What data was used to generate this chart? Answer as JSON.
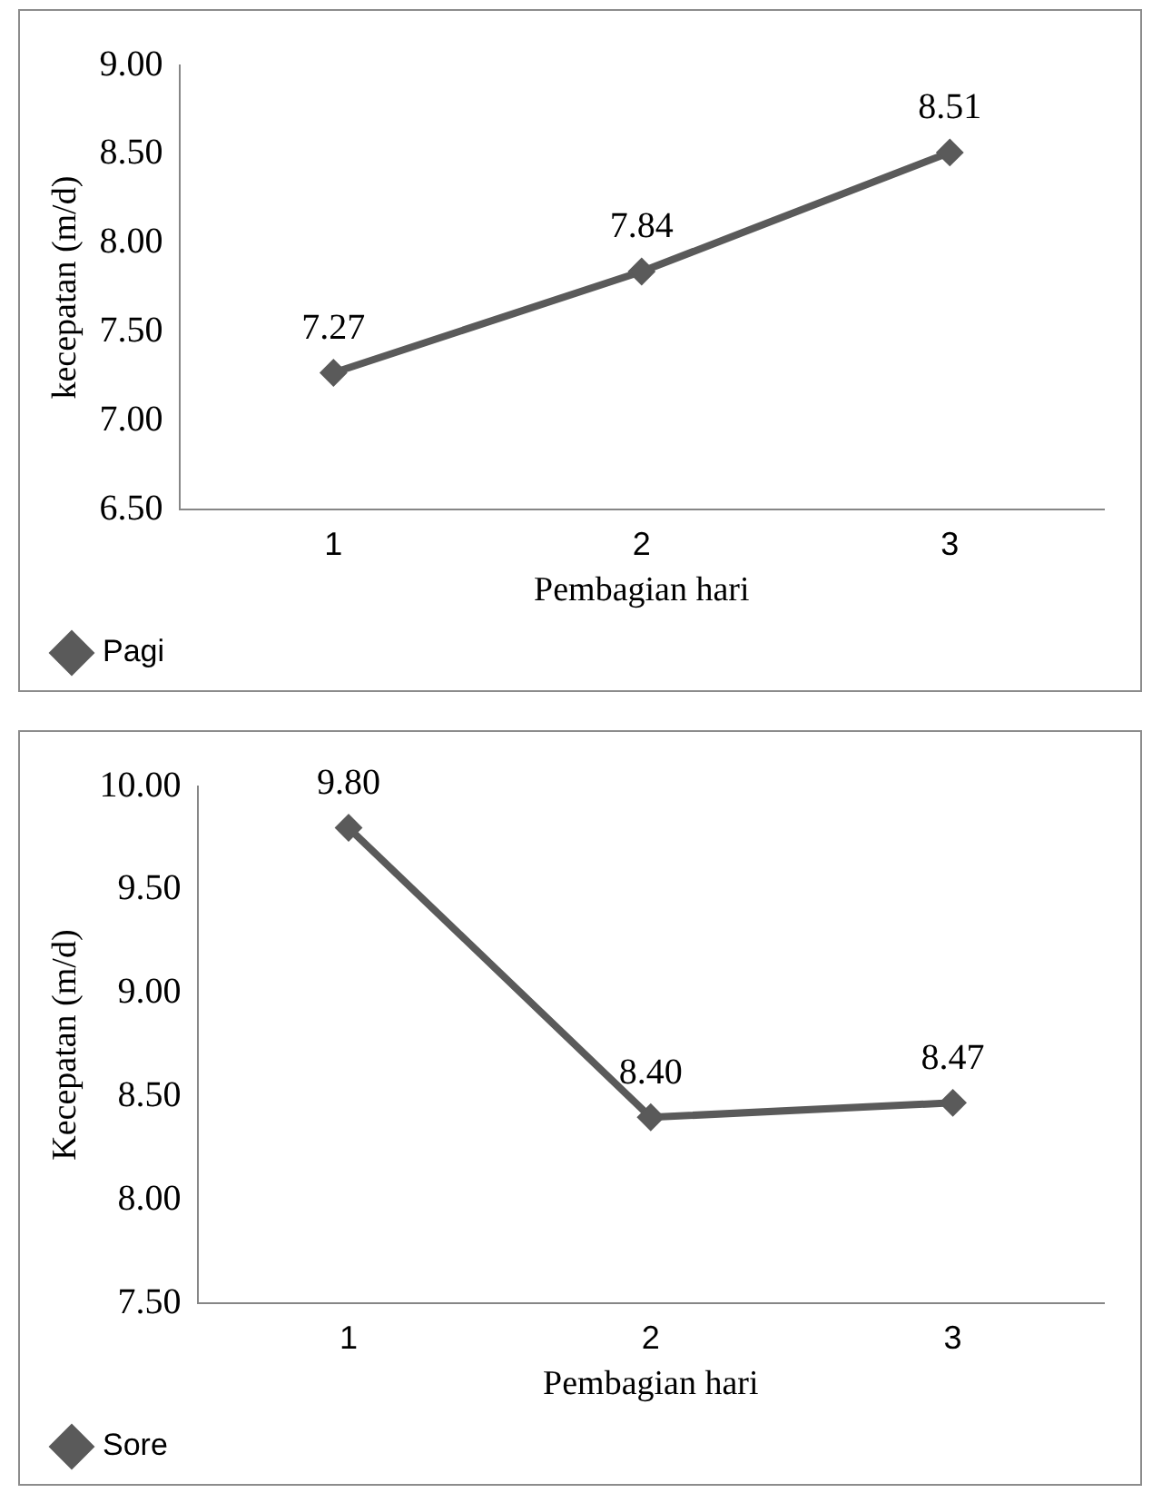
{
  "chart_data": [
    {
      "type": "line",
      "categories": [
        "1",
        "2",
        "3"
      ],
      "series": [
        {
          "name": "Pagi",
          "color": "#5a5a5a",
          "values": [
            7.27,
            7.84,
            8.51
          ],
          "value_labels": [
            "7.27",
            "7.84",
            "8.51"
          ]
        }
      ],
      "ylabel": "kecepatan (m/d)",
      "xlabel": "Pembagian hari",
      "ylim": [
        6.5,
        9
      ],
      "yticks": [
        {
          "value": 6.5,
          "label": "6.50"
        },
        {
          "value": 7,
          "label": "7.00"
        },
        {
          "value": 7.5,
          "label": "7.50"
        },
        {
          "value": 8,
          "label": "8.00"
        },
        {
          "value": 8.5,
          "label": "8.50"
        },
        {
          "value": 9,
          "label": "9.00"
        }
      ],
      "grid": false,
      "legend": "bottom left",
      "marker": "diamond",
      "line_style": "solid"
    },
    {
      "type": "line",
      "categories": [
        "1",
        "2",
        "3"
      ],
      "series": [
        {
          "name": "Sore",
          "color": "#5a5a5a",
          "values": [
            9.8,
            8.4,
            8.47
          ],
          "value_labels": [
            "9.80",
            "8.40",
            "8.47"
          ]
        }
      ],
      "ylabel": "Kecepatan (m/d)",
      "xlabel": "Pembagian hari",
      "ylim": [
        7.5,
        10
      ],
      "yticks": [
        {
          "value": 7.5,
          "label": "7.50"
        },
        {
          "value": 8,
          "label": "8.00"
        },
        {
          "value": 8.5,
          "label": "8.50"
        },
        {
          "value": 9,
          "label": "9.00"
        },
        {
          "value": 9.5,
          "label": "9.50"
        },
        {
          "value": 10,
          "label": "10.00"
        }
      ],
      "grid": false,
      "legend": "bottom left",
      "marker": "diamond",
      "line_style": "solid"
    }
  ]
}
